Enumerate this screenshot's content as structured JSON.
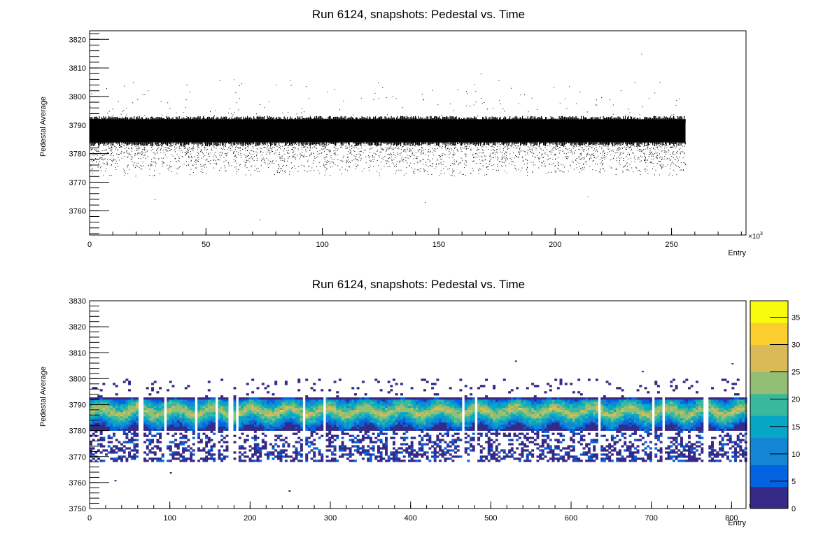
{
  "chart_data": [
    {
      "type": "scatter",
      "title": "Run 6124, snapshots: Pedestal vs. Time",
      "xlabel": "Entry",
      "ylabel": "Pedestal Average",
      "x_exponent_label": "×10",
      "x_exponent_power": "3",
      "xlim": [
        0,
        282
      ],
      "ylim": [
        3751.5,
        3823
      ],
      "x_ticks": [
        "0",
        "50",
        "100",
        "150",
        "200",
        "250"
      ],
      "y_ticks": [
        "3760",
        "3770",
        "3780",
        "3790",
        "3800",
        "3810",
        "3820"
      ],
      "x_tick_values": [
        0,
        50,
        100,
        150,
        200,
        250
      ],
      "y_tick_values": [
        3760,
        3770,
        3780,
        3790,
        3800,
        3810,
        3820
      ],
      "series": [
        {
          "x_range": [
            0,
            256
          ],
          "core_band": [
            3784,
            3792
          ],
          "tail_band": [
            3772,
            3784
          ],
          "outliers": [
            {
              "x": 62,
              "y": 3806
            },
            {
              "x": 73,
              "y": 3757
            },
            {
              "x": 124,
              "y": 3805
            },
            {
              "x": 168,
              "y": 3808
            },
            {
              "x": 237,
              "y": 3815
            },
            {
              "x": 181,
              "y": 3803
            },
            {
              "x": 28,
              "y": 3764
            },
            {
              "x": 144,
              "y": 3763
            },
            {
              "x": 214,
              "y": 3765
            }
          ]
        }
      ],
      "grid": false,
      "legend": "none"
    },
    {
      "type": "heatmap",
      "title": "Run 6124, snapshots: Pedestal vs. Time",
      "xlabel": "Entry",
      "ylabel": "Pedestal Average",
      "x_exponent_label": "×10",
      "x_exponent_power": "3",
      "xlim": [
        0,
        818
      ],
      "ylim": [
        3750,
        3830
      ],
      "x_ticks": [
        "0",
        "100",
        "200",
        "300",
        "400",
        "500",
        "600",
        "700",
        "800"
      ],
      "y_ticks": [
        "3750",
        "3760",
        "3770",
        "3780",
        "3790",
        "3800",
        "3810",
        "3820",
        "3830"
      ],
      "x_tick_values": [
        0,
        100,
        200,
        300,
        400,
        500,
        600,
        700,
        800
      ],
      "y_tick_values": [
        3750,
        3760,
        3770,
        3780,
        3790,
        3800,
        3810,
        3820,
        3830
      ],
      "z_range": [
        0,
        38
      ],
      "z_ticks": [
        "0",
        "5",
        "10",
        "15",
        "20",
        "25",
        "30",
        "35"
      ],
      "z_tick_values": [
        0,
        5,
        10,
        15,
        20,
        25,
        30,
        35
      ],
      "core_band": [
        3780,
        3792
      ],
      "peak_value": 38,
      "gaps_x": [
        62,
        93,
        132,
        157,
        174,
        182,
        266,
        292,
        464,
        480,
        634,
        700,
        714,
        766
      ],
      "colormap": [
        "#352a87",
        "#0363e1",
        "#1485d4",
        "#06a7c6",
        "#38b99e",
        "#92bf73",
        "#d9ba56",
        "#fcce2e",
        "#f9fb0e"
      ],
      "outliers": [
        {
          "x": 248,
          "y": 3757
        },
        {
          "x": 100,
          "y": 3764
        },
        {
          "x": 530,
          "y": 3807
        },
        {
          "x": 688,
          "y": 3803
        },
        {
          "x": 31,
          "y": 3761
        },
        {
          "x": 800,
          "y": 3806
        }
      ]
    }
  ]
}
